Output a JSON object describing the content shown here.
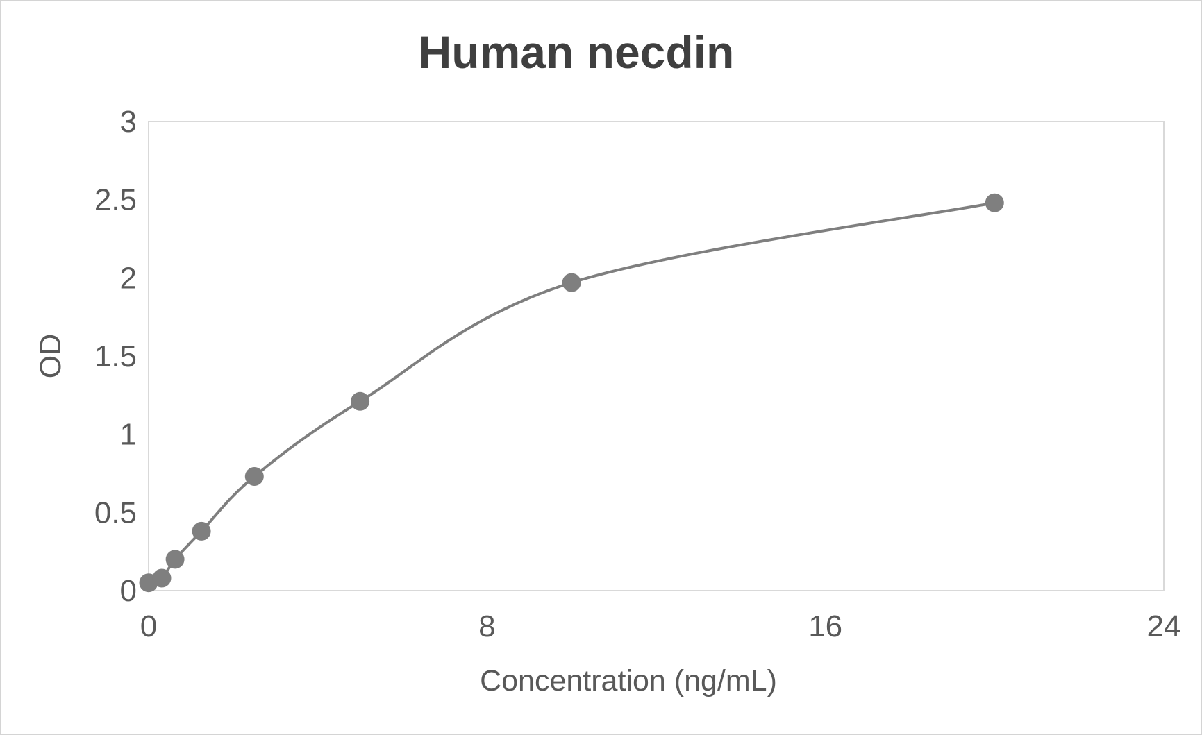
{
  "colors": {
    "series": "#7f7f7f",
    "axis_line": "#d9d9d9",
    "tick_text": "#595959",
    "title_text": "#3f3f3f",
    "background": "#ffffff",
    "canvas_border": "#d4d4d4"
  },
  "chart_data": {
    "type": "line",
    "subtype": "scatter-with-smooth-line-and-markers",
    "title": "Human necdin",
    "xlabel": "Concentration (ng/mL)",
    "ylabel": "OD",
    "x": [
      0,
      0.3125,
      0.625,
      1.25,
      2.5,
      5,
      10,
      20
    ],
    "y": [
      0.05,
      0.08,
      0.2,
      0.38,
      0.73,
      1.21,
      1.97,
      2.48
    ],
    "xlim": [
      0,
      24
    ],
    "ylim": [
      0,
      3
    ],
    "x_ticks": [
      0,
      8,
      16,
      24
    ],
    "y_ticks": [
      0,
      0.5,
      1,
      1.5,
      2,
      2.5,
      3
    ],
    "grid": false,
    "legend": "none",
    "marker": "circle",
    "line_smooth": true
  }
}
